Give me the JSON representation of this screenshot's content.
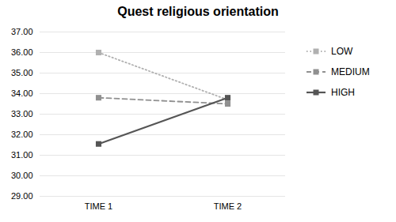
{
  "chart_data": {
    "type": "line",
    "title": "Quest religious orientation",
    "categories": [
      "TIME 1",
      "TIME 2"
    ],
    "series": [
      {
        "name": "LOW",
        "color": "#b0b0b0",
        "line_style": "dotted",
        "marker": "square",
        "values": [
          36.0,
          33.7
        ]
      },
      {
        "name": "MEDIUM",
        "color": "#909090",
        "line_style": "dashed",
        "marker": "square",
        "values": [
          33.8,
          33.5
        ]
      },
      {
        "name": "HIGH",
        "color": "#555555",
        "line_style": "solid",
        "marker": "square",
        "values": [
          31.55,
          33.8
        ]
      }
    ],
    "ylim": [
      29.0,
      37.0
    ],
    "yticks": [
      {
        "value": 29,
        "label": "29.00"
      },
      {
        "value": 30,
        "label": "30.00"
      },
      {
        "value": 31,
        "label": "31.00"
      },
      {
        "value": 32,
        "label": "32.00"
      },
      {
        "value": 33,
        "label": "33.00"
      },
      {
        "value": 34,
        "label": "34.00"
      },
      {
        "value": 35,
        "label": "35.00"
      },
      {
        "value": 36,
        "label": "36.00"
      },
      {
        "value": 37,
        "label": "37.00"
      }
    ],
    "grid": true,
    "legend": "right"
  }
}
